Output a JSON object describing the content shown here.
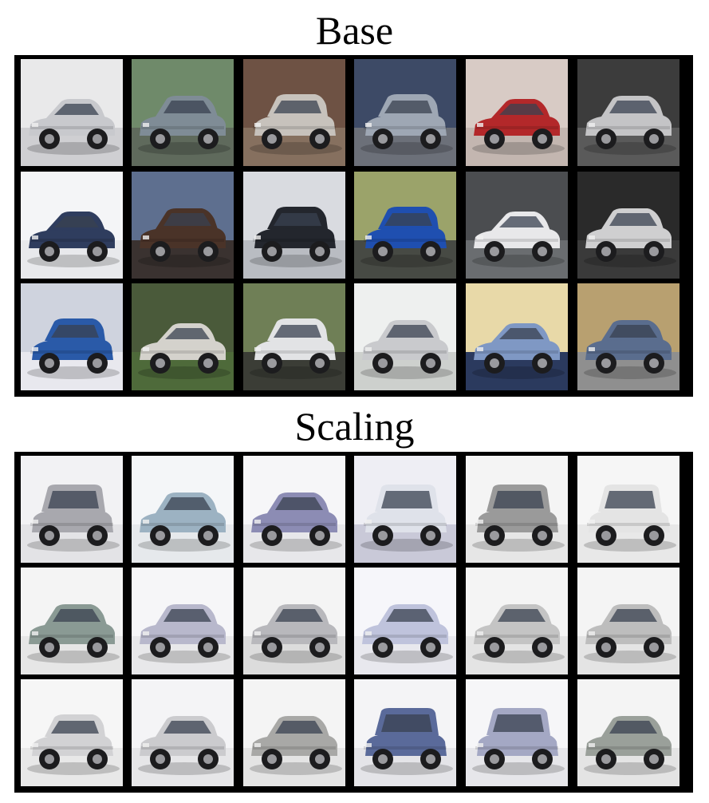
{
  "panels": [
    {
      "title": "Base",
      "rows": [
        [
          {
            "bg": "#e9e9ea",
            "ground": "#cfcfd2",
            "car": "#c8c9cd",
            "style": "coupe"
          },
          {
            "bg": "#6f8a6a",
            "ground": "#5f6a5c",
            "car": "#7f8c96",
            "style": "sedan"
          },
          {
            "bg": "#6e5244",
            "ground": "#86705f",
            "car": "#c7c2bc",
            "style": "hatch"
          },
          {
            "bg": "#3d4a66",
            "ground": "#6c7079",
            "car": "#9ea7b4",
            "style": "hatch"
          },
          {
            "bg": "#d8cbc5",
            "ground": "#c3b6b0",
            "car": "#b3282a",
            "style": "coupe"
          },
          {
            "bg": "#3c3c3c",
            "ground": "#5a5a5a",
            "car": "#c4c4c6",
            "style": "sedan"
          }
        ],
        [
          {
            "bg": "#f4f5f7",
            "ground": "#e8e9ec",
            "car": "#2f3d5e",
            "style": "coupe"
          },
          {
            "bg": "#5e6f8f",
            "ground": "#3a3230",
            "car": "#4a3328",
            "style": "sedan"
          },
          {
            "bg": "#d9dbe0",
            "ground": "#b9bcc2",
            "car": "#23262d",
            "style": "hatch"
          },
          {
            "bg": "#9ba36a",
            "ground": "#474a44",
            "car": "#1f4fb0",
            "style": "hatch"
          },
          {
            "bg": "#4b4d50",
            "ground": "#6a6d70",
            "car": "#e8e8ea",
            "style": "coupe"
          },
          {
            "bg": "#2a2a2a",
            "ground": "#3a3a3a",
            "car": "#cfcfd0",
            "style": "sedan"
          }
        ],
        [
          {
            "bg": "#cfd3de",
            "ground": "#e8e8ee",
            "car": "#2a5aa8",
            "style": "hatch"
          },
          {
            "bg": "#4a5a3a",
            "ground": "#4e6a3a",
            "car": "#d4d2cc",
            "style": "coupe"
          },
          {
            "bg": "#6f7f56",
            "ground": "#3b3d36",
            "car": "#e2e3e5",
            "style": "hatch"
          },
          {
            "bg": "#eef0ef",
            "ground": "#cdd0cd",
            "car": "#c9cacd",
            "style": "sedan"
          },
          {
            "bg": "#e8d9a8",
            "ground": "#2b3a5e",
            "car": "#7f98c4",
            "style": "coupe"
          },
          {
            "bg": "#b8a070",
            "ground": "#8f8f8f",
            "car": "#5a6d8e",
            "style": "sedan"
          }
        ]
      ]
    },
    {
      "title": "Scaling",
      "rows": [
        [
          {
            "bg": "#f2f2f4",
            "ground": "#e3e3e6",
            "car": "#a8a8ae",
            "style": "suv"
          },
          {
            "bg": "#f4f6f8",
            "ground": "#e6e9ec",
            "car": "#9cb2c2",
            "style": "sedan"
          },
          {
            "bg": "#f6f6f8",
            "ground": "#e7e7ea",
            "car": "#8c8cb4",
            "style": "sedan"
          },
          {
            "bg": "#eeeef4",
            "ground": "#c9c9d8",
            "car": "#dfe2ea",
            "style": "suv"
          },
          {
            "bg": "#f4f4f4",
            "ground": "#e6e6e6",
            "car": "#9a9a9a",
            "style": "suv"
          },
          {
            "bg": "#f6f6f6",
            "ground": "#e8e8e8",
            "car": "#e4e4e4",
            "style": "suv"
          }
        ],
        [
          {
            "bg": "#f4f4f4",
            "ground": "#e6e6e6",
            "car": "#8a9a94",
            "style": "sedan"
          },
          {
            "bg": "#f6f6f8",
            "ground": "#e8e8ea",
            "car": "#b8b8cc",
            "style": "sedan"
          },
          {
            "bg": "#f4f4f4",
            "ground": "#dcdcdc",
            "car": "#b8b8bc",
            "style": "sedan"
          },
          {
            "bg": "#f6f6fa",
            "ground": "#e8e8ee",
            "car": "#bfc3dc",
            "style": "sedan"
          },
          {
            "bg": "#f4f4f4",
            "ground": "#e4e4e4",
            "car": "#c4c4c4",
            "style": "sedan"
          },
          {
            "bg": "#f4f4f4",
            "ground": "#e4e4e4",
            "car": "#bdbdbd",
            "style": "sedan"
          }
        ],
        [
          {
            "bg": "#f6f6f6",
            "ground": "#e8e8e8",
            "car": "#d2d2d4",
            "style": "hatch"
          },
          {
            "bg": "#f4f4f6",
            "ground": "#e6e6e8",
            "car": "#cbcbce",
            "style": "sedan"
          },
          {
            "bg": "#f4f4f4",
            "ground": "#e4e4e4",
            "car": "#a8a8a6",
            "style": "sedan"
          },
          {
            "bg": "#f4f4f6",
            "ground": "#e4e4e8",
            "car": "#5a6a9a",
            "style": "suv"
          },
          {
            "bg": "#f6f6f8",
            "ground": "#e6e6ea",
            "car": "#a4a8c4",
            "style": "suv"
          },
          {
            "bg": "#f4f4f4",
            "ground": "#e4e4e4",
            "car": "#9aa09a",
            "style": "sedan"
          }
        ]
      ]
    }
  ]
}
